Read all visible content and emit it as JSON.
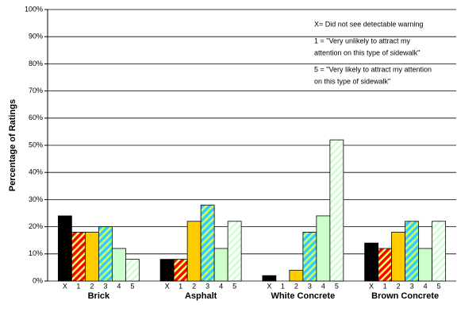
{
  "chart_data": {
    "type": "bar",
    "y_label": "Percentage of Ratings",
    "categories": [
      "Brick",
      "Asphalt",
      "White Concrete",
      "Brown Concrete"
    ],
    "series": [
      {
        "name": "X",
        "color": "#000000",
        "values": [
          24,
          8,
          2,
          14
        ]
      },
      {
        "name": "1",
        "color": "#ff0000",
        "hatch": "#ffff66",
        "values": [
          18,
          8,
          0,
          12
        ]
      },
      {
        "name": "2",
        "color": "#ffcc00",
        "values": [
          18,
          22,
          4,
          18
        ]
      },
      {
        "name": "3",
        "color": "#33ccff",
        "hatch": "#ccff66",
        "values": [
          20,
          28,
          18,
          22
        ]
      },
      {
        "name": "4",
        "color": "#ccffcc",
        "values": [
          12,
          12,
          24,
          12
        ]
      },
      {
        "name": "5",
        "color": "#ffffff",
        "hatch": "#ccffcc",
        "values": [
          8,
          22,
          52,
          22
        ]
      }
    ],
    "ylim": [
      0,
      100
    ],
    "yticks": [
      {
        "value": 0,
        "label": "0%"
      },
      {
        "value": 10,
        "label": "10%"
      },
      {
        "value": 20,
        "label": "20%"
      },
      {
        "value": 30,
        "label": "30%"
      },
      {
        "value": 40,
        "label": "40%"
      },
      {
        "value": 50,
        "label": "50%"
      },
      {
        "value": 60,
        "label": "60%"
      },
      {
        "value": 70,
        "label": "70%"
      },
      {
        "value": 80,
        "label": "80%"
      },
      {
        "value": 90,
        "label": "90%"
      },
      {
        "value": 100,
        "label": "100%"
      }
    ],
    "grid": true,
    "annotations": [
      [
        "X= Did not see detectable warning"
      ],
      [
        "1 = \"Very unlikely to attract my",
        "attention on this type of sidewalk\""
      ],
      [
        "5 = \"Very likely to attract my attention",
        "on this type of sidewalk\""
      ]
    ]
  }
}
